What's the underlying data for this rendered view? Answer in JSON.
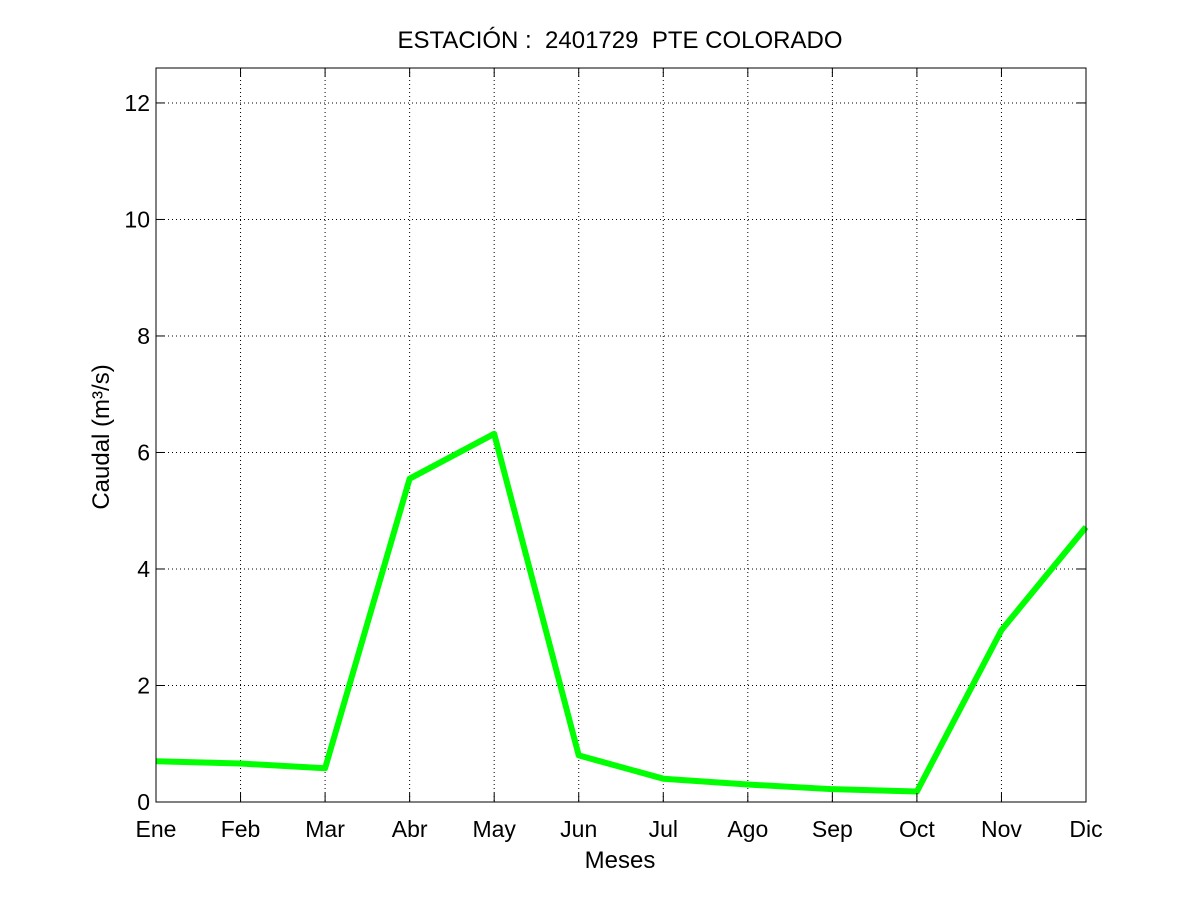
{
  "chart_data": {
    "type": "line",
    "title": "ESTACIÓN :  2401729  PTE COLORADO",
    "xlabel": "Meses",
    "ylabel": "Caudal (m³/s)",
    "categories": [
      "Ene",
      "Feb",
      "Mar",
      "Abr",
      "May",
      "Jun",
      "Jul",
      "Ago",
      "Sep",
      "Oct",
      "Nov",
      "Dic"
    ],
    "yticks": [
      0,
      2,
      4,
      6,
      8,
      10,
      12
    ],
    "ylim": [
      0,
      12.6
    ],
    "grid": true,
    "series": [
      {
        "color": "#00ff00",
        "values": [
          0.7,
          0.66,
          0.58,
          5.55,
          6.32,
          0.8,
          0.4,
          0.3,
          0.22,
          0.18,
          2.95,
          4.72
        ]
      }
    ]
  }
}
